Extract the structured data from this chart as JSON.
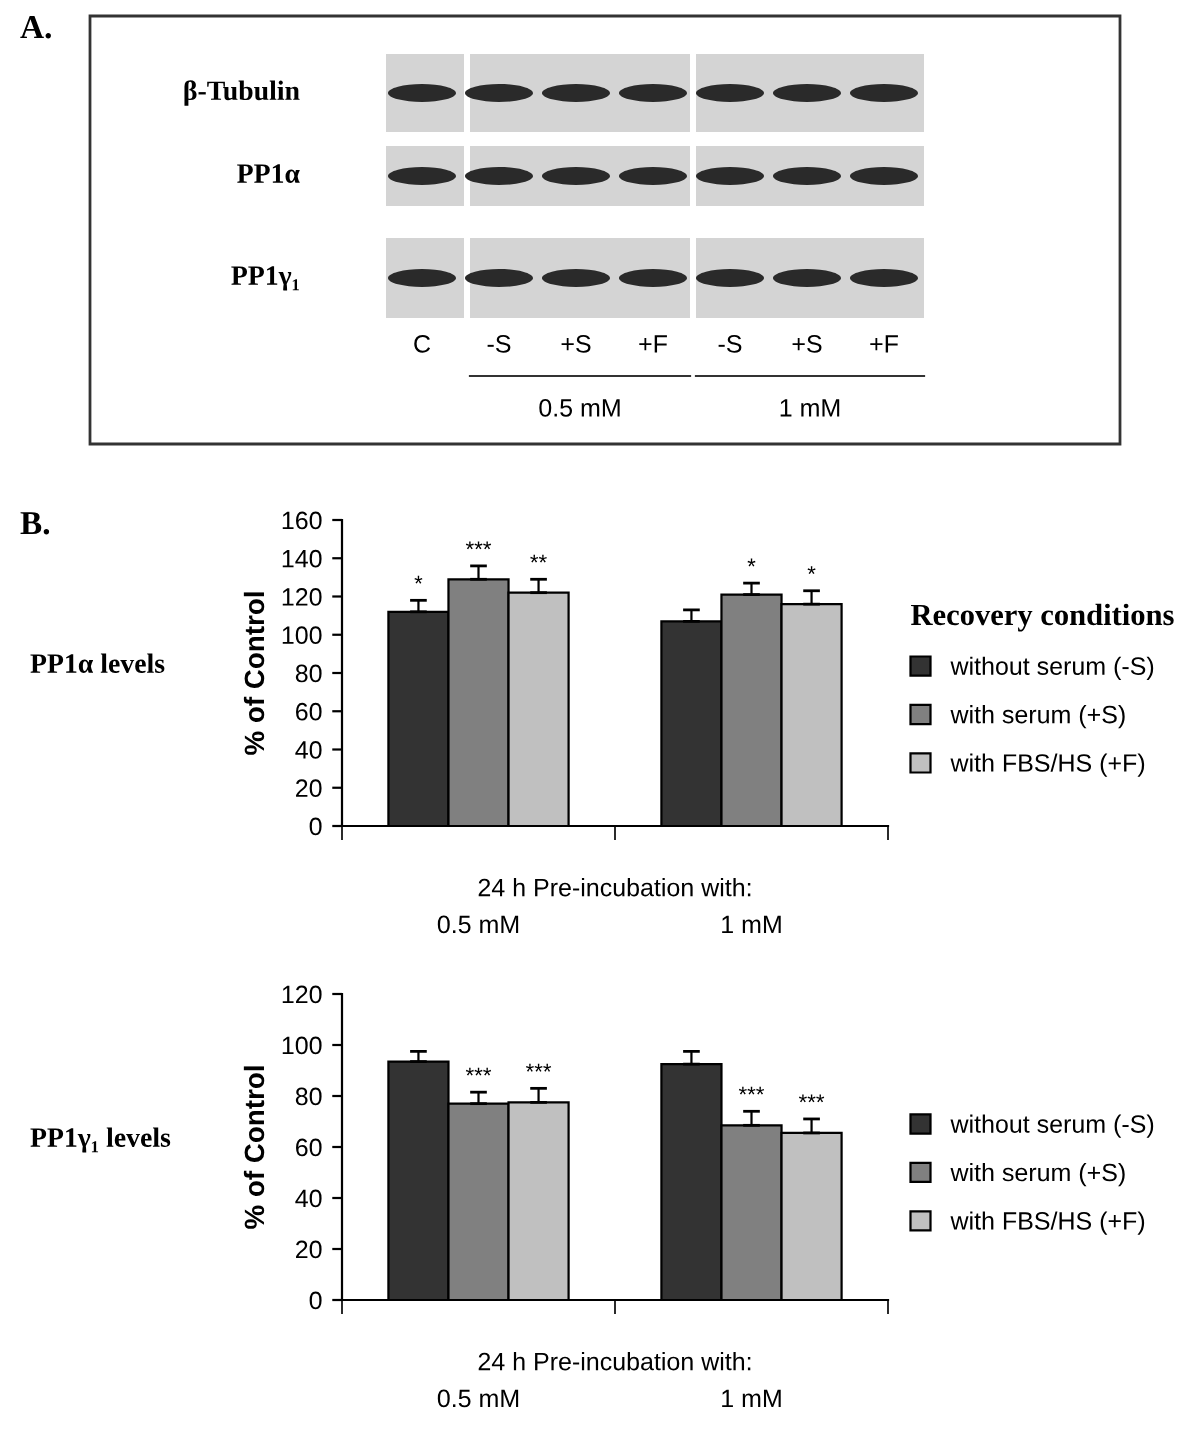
{
  "chart_data": [
    {
      "type": "other",
      "annotations": [
        "A.",
        "β-Tubulin",
        "PP1α",
        "PP1γ₁",
        "C",
        "-S",
        "+S",
        "+F",
        "-S",
        "+S",
        "+F",
        "0.5 mM",
        "1 mM"
      ]
    },
    {
      "type": "bar",
      "title": "PP1α levels",
      "ylabel": "% of Control",
      "xlabel": "24 h Pre-incubation with:",
      "legend_title": "Recovery conditions",
      "annotations": [
        "B."
      ],
      "categories": [
        "0.5 mM",
        "1 mM"
      ],
      "ylim": [
        0,
        160
      ],
      "yticks": [
        0,
        20,
        40,
        60,
        80,
        100,
        120,
        140,
        160
      ],
      "grid": false,
      "legend": "right",
      "series": [
        {
          "name": "without serum (-S)",
          "color": "#333333",
          "values": [
            112,
            107
          ],
          "errors": [
            [
              112,
              118
            ],
            [
              107,
              113
            ]
          ],
          "value_labels": [
            "*",
            null
          ]
        },
        {
          "name": "with serum (+S)",
          "color": "#808080",
          "values": [
            129,
            121
          ],
          "errors": [
            [
              129,
              136
            ],
            [
              121,
              127
            ]
          ],
          "value_labels": [
            "***",
            "*"
          ]
        },
        {
          "name": "with FBS/HS (+F)",
          "color": "#c0c0c0",
          "values": [
            122,
            116
          ],
          "errors": [
            [
              122,
              129
            ],
            [
              116,
              123
            ]
          ],
          "value_labels": [
            "**",
            "*"
          ]
        }
      ]
    },
    {
      "type": "bar",
      "title": "PP1γ₁ levels",
      "ylabel": "% of Control",
      "xlabel": "24 h Pre-incubation with:",
      "categories": [
        "0.5 mM",
        "1 mM"
      ],
      "ylim": [
        0,
        120
      ],
      "yticks": [
        0,
        20,
        40,
        60,
        80,
        100,
        120
      ],
      "grid": false,
      "legend": "right",
      "series": [
        {
          "name": "without serum (-S)",
          "color": "#333333",
          "values": [
            93.5,
            92.5
          ],
          "errors": [
            [
              93.5,
              97.5
            ],
            [
              92.5,
              97.5
            ]
          ],
          "value_labels": [
            null,
            null
          ]
        },
        {
          "name": "with serum (+S)",
          "color": "#808080",
          "values": [
            77,
            68.5
          ],
          "errors": [
            [
              77,
              81.5
            ],
            [
              68.5,
              74
            ]
          ],
          "value_labels": [
            "***",
            "***"
          ]
        },
        {
          "name": "with FBS/HS (+F)",
          "color": "#c0c0c0",
          "values": [
            77.5,
            65.5
          ],
          "errors": [
            [
              77.5,
              83
            ],
            [
              65.5,
              71
            ]
          ],
          "value_labels": [
            "***",
            "***"
          ]
        }
      ]
    }
  ]
}
